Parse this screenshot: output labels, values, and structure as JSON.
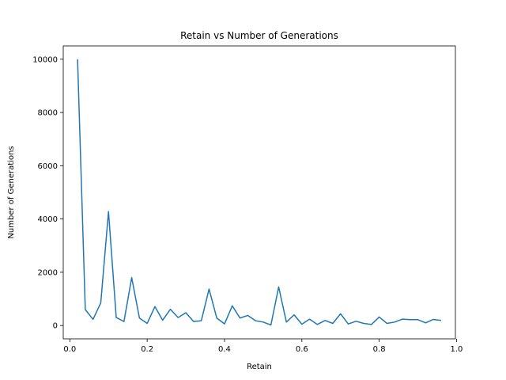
{
  "chart_data": {
    "type": "line",
    "title": "Retain vs Number of Generations",
    "xlabel": "Retain",
    "ylabel": "Number of Generations",
    "xlim": [
      -0.017,
      0.997
    ],
    "ylim": [
      -500,
      10500
    ],
    "xticks": [
      "0.0",
      "0.2",
      "0.4",
      "0.6",
      "0.8",
      "1.0"
    ],
    "xtick_values": [
      0.0,
      0.2,
      0.4,
      0.6,
      0.8,
      1.0
    ],
    "yticks": [
      "0",
      "2000",
      "4000",
      "6000",
      "8000",
      "10000"
    ],
    "ytick_values": [
      0,
      2000,
      4000,
      6000,
      8000,
      10000
    ],
    "grid": false,
    "series": [
      {
        "color": "#1f77b4",
        "x": [
          0.02,
          0.04,
          0.06,
          0.08,
          0.1,
          0.12,
          0.14,
          0.16,
          0.18,
          0.2,
          0.22,
          0.24,
          0.26,
          0.28,
          0.3,
          0.32,
          0.34,
          0.36,
          0.38,
          0.4,
          0.42,
          0.44,
          0.46,
          0.48,
          0.5,
          0.52,
          0.54,
          0.56,
          0.58,
          0.6,
          0.62,
          0.64,
          0.66,
          0.68,
          0.7,
          0.72,
          0.74,
          0.76,
          0.78,
          0.8,
          0.82,
          0.84,
          0.86,
          0.88,
          0.9,
          0.92,
          0.94,
          0.96
        ],
        "y": [
          10000,
          600,
          230,
          850,
          4280,
          300,
          150,
          1800,
          280,
          80,
          710,
          200,
          610,
          300,
          480,
          150,
          180,
          1370,
          280,
          60,
          740,
          280,
          380,
          180,
          130,
          20,
          1450,
          130,
          400,
          50,
          240,
          40,
          190,
          80,
          440,
          60,
          160,
          80,
          40,
          320,
          80,
          130,
          240,
          220,
          220,
          100,
          230,
          190
        ]
      }
    ]
  }
}
